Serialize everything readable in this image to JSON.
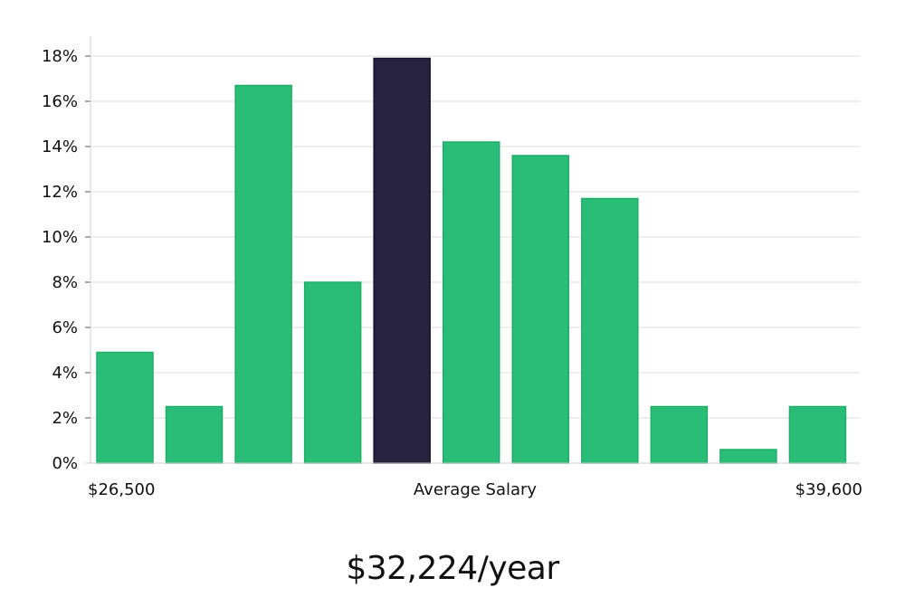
{
  "chart_data": {
    "type": "bar",
    "title": "",
    "ylabel": "",
    "xlabel": "Average Salary",
    "ylim": [
      0,
      18
    ],
    "y_ticks": [
      0,
      2,
      4,
      6,
      8,
      10,
      12,
      14,
      16,
      18
    ],
    "y_tick_suffix": "%",
    "x_range_labels": {
      "min": "$26,500",
      "center": "Average Salary",
      "max": "$39,600"
    },
    "values": [
      4.9,
      2.5,
      16.7,
      8.0,
      17.9,
      14.2,
      13.6,
      11.7,
      2.5,
      0.6,
      2.5
    ],
    "highlight_index": 4,
    "colors": {
      "bar": "#2abd77",
      "bar_border": "#1fae68",
      "highlight": "#27233f",
      "highlight_border": "#15122b",
      "grid": "#dcdcdc",
      "axis": "#cfcfcf"
    }
  },
  "summary": {
    "salary": "$32,224/year"
  }
}
